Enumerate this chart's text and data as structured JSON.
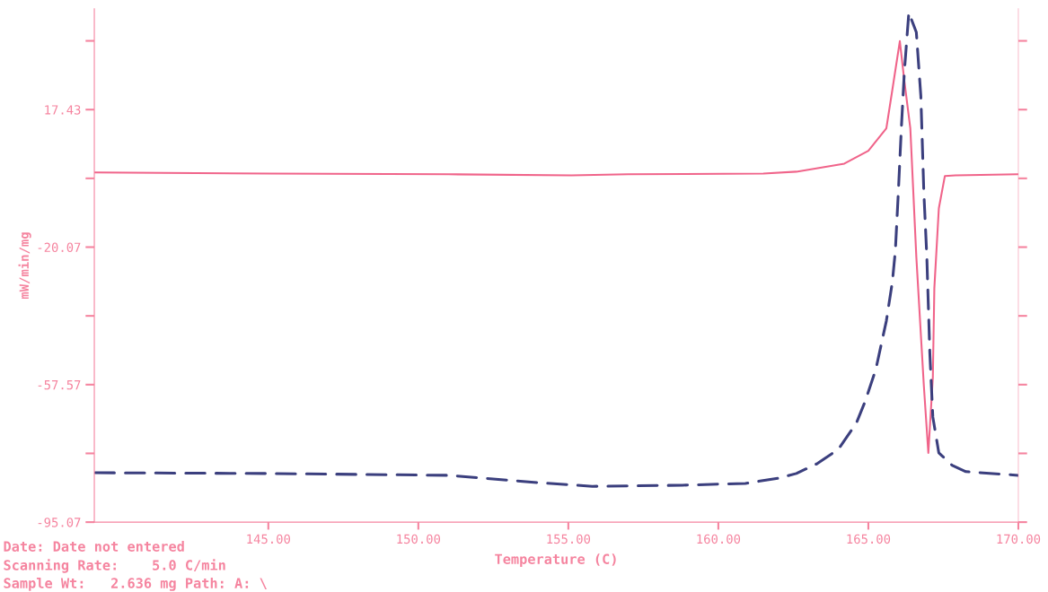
{
  "chart_data": {
    "type": "line",
    "xlabel": "Temperature (C)",
    "ylabel": "mW/min/mg",
    "xlim": [
      139.2,
      170.0
    ],
    "xticks": [
      {
        "value": 145,
        "label": "145.00"
      },
      {
        "value": 150,
        "label": "150.00"
      },
      {
        "value": 155,
        "label": "155.00"
      },
      {
        "value": 160,
        "label": "160.00"
      },
      {
        "value": 165,
        "label": "165.00"
      },
      {
        "value": 170,
        "label": "170.00"
      }
    ],
    "ylim": [
      -95.07,
      44.9
    ],
    "yticks": [
      -95.07,
      {
        "value": -76.32,
        "label": null
      },
      -57.57,
      {
        "value": -38.82,
        "label": null
      },
      -20.07,
      {
        "value": -1.32,
        "label": null
      },
      17.43,
      {
        "value": 36.18,
        "label": null
      }
    ],
    "grid": false,
    "legend": false,
    "series": [
      {
        "color": "#f0648a",
        "line_style": "solid",
        "x": [
          139.23,
          145.0,
          151.0,
          155.1,
          157.0,
          161.5,
          162.6,
          164.2,
          165.0,
          165.6,
          165.8,
          166.05,
          166.2,
          166.4,
          166.6,
          166.85,
          167.0,
          167.15,
          167.2,
          167.35,
          167.55,
          167.9,
          170.0
        ],
        "values": [
          0.3,
          0.0,
          -0.2,
          -0.5,
          -0.2,
          0.0,
          0.5,
          2.7,
          6.2,
          12.3,
          22.8,
          36.1,
          25.3,
          12.3,
          -22.8,
          -57.8,
          -76.2,
          -55.6,
          -31.3,
          -9.5,
          -0.7,
          -0.5,
          -0.2
        ]
      },
      {
        "color": "#3b3f7e",
        "line_style": "dashed",
        "x": [
          139.23,
          145.0,
          151.0,
          154.0,
          155.8,
          158.8,
          160.9,
          162.0,
          162.6,
          163.3,
          164.0,
          164.6,
          164.9,
          165.25,
          165.6,
          165.8,
          165.9,
          166.0,
          166.1,
          166.2,
          166.35,
          166.6,
          166.75,
          166.85,
          166.95,
          167.05,
          167.15,
          167.35,
          167.8,
          168.25,
          170.0
        ],
        "values": [
          -81.6,
          -81.8,
          -82.3,
          -84.3,
          -85.3,
          -85.0,
          -84.5,
          -83.1,
          -81.8,
          -79.1,
          -75.2,
          -68.1,
          -62.0,
          -53.4,
          -40.2,
          -29.6,
          -21.1,
          -5.1,
          12.3,
          27.7,
          43.9,
          38.5,
          21.1,
          -5.1,
          -22.8,
          -49.0,
          -66.4,
          -76.2,
          -79.6,
          -81.3,
          -82.3
        ]
      }
    ],
    "annotations": [
      "Date: Date not entered",
      "Scanning Rate:    5.0 C/min",
      "Sample Wt:   2.636 mg Path: A: \\"
    ]
  }
}
